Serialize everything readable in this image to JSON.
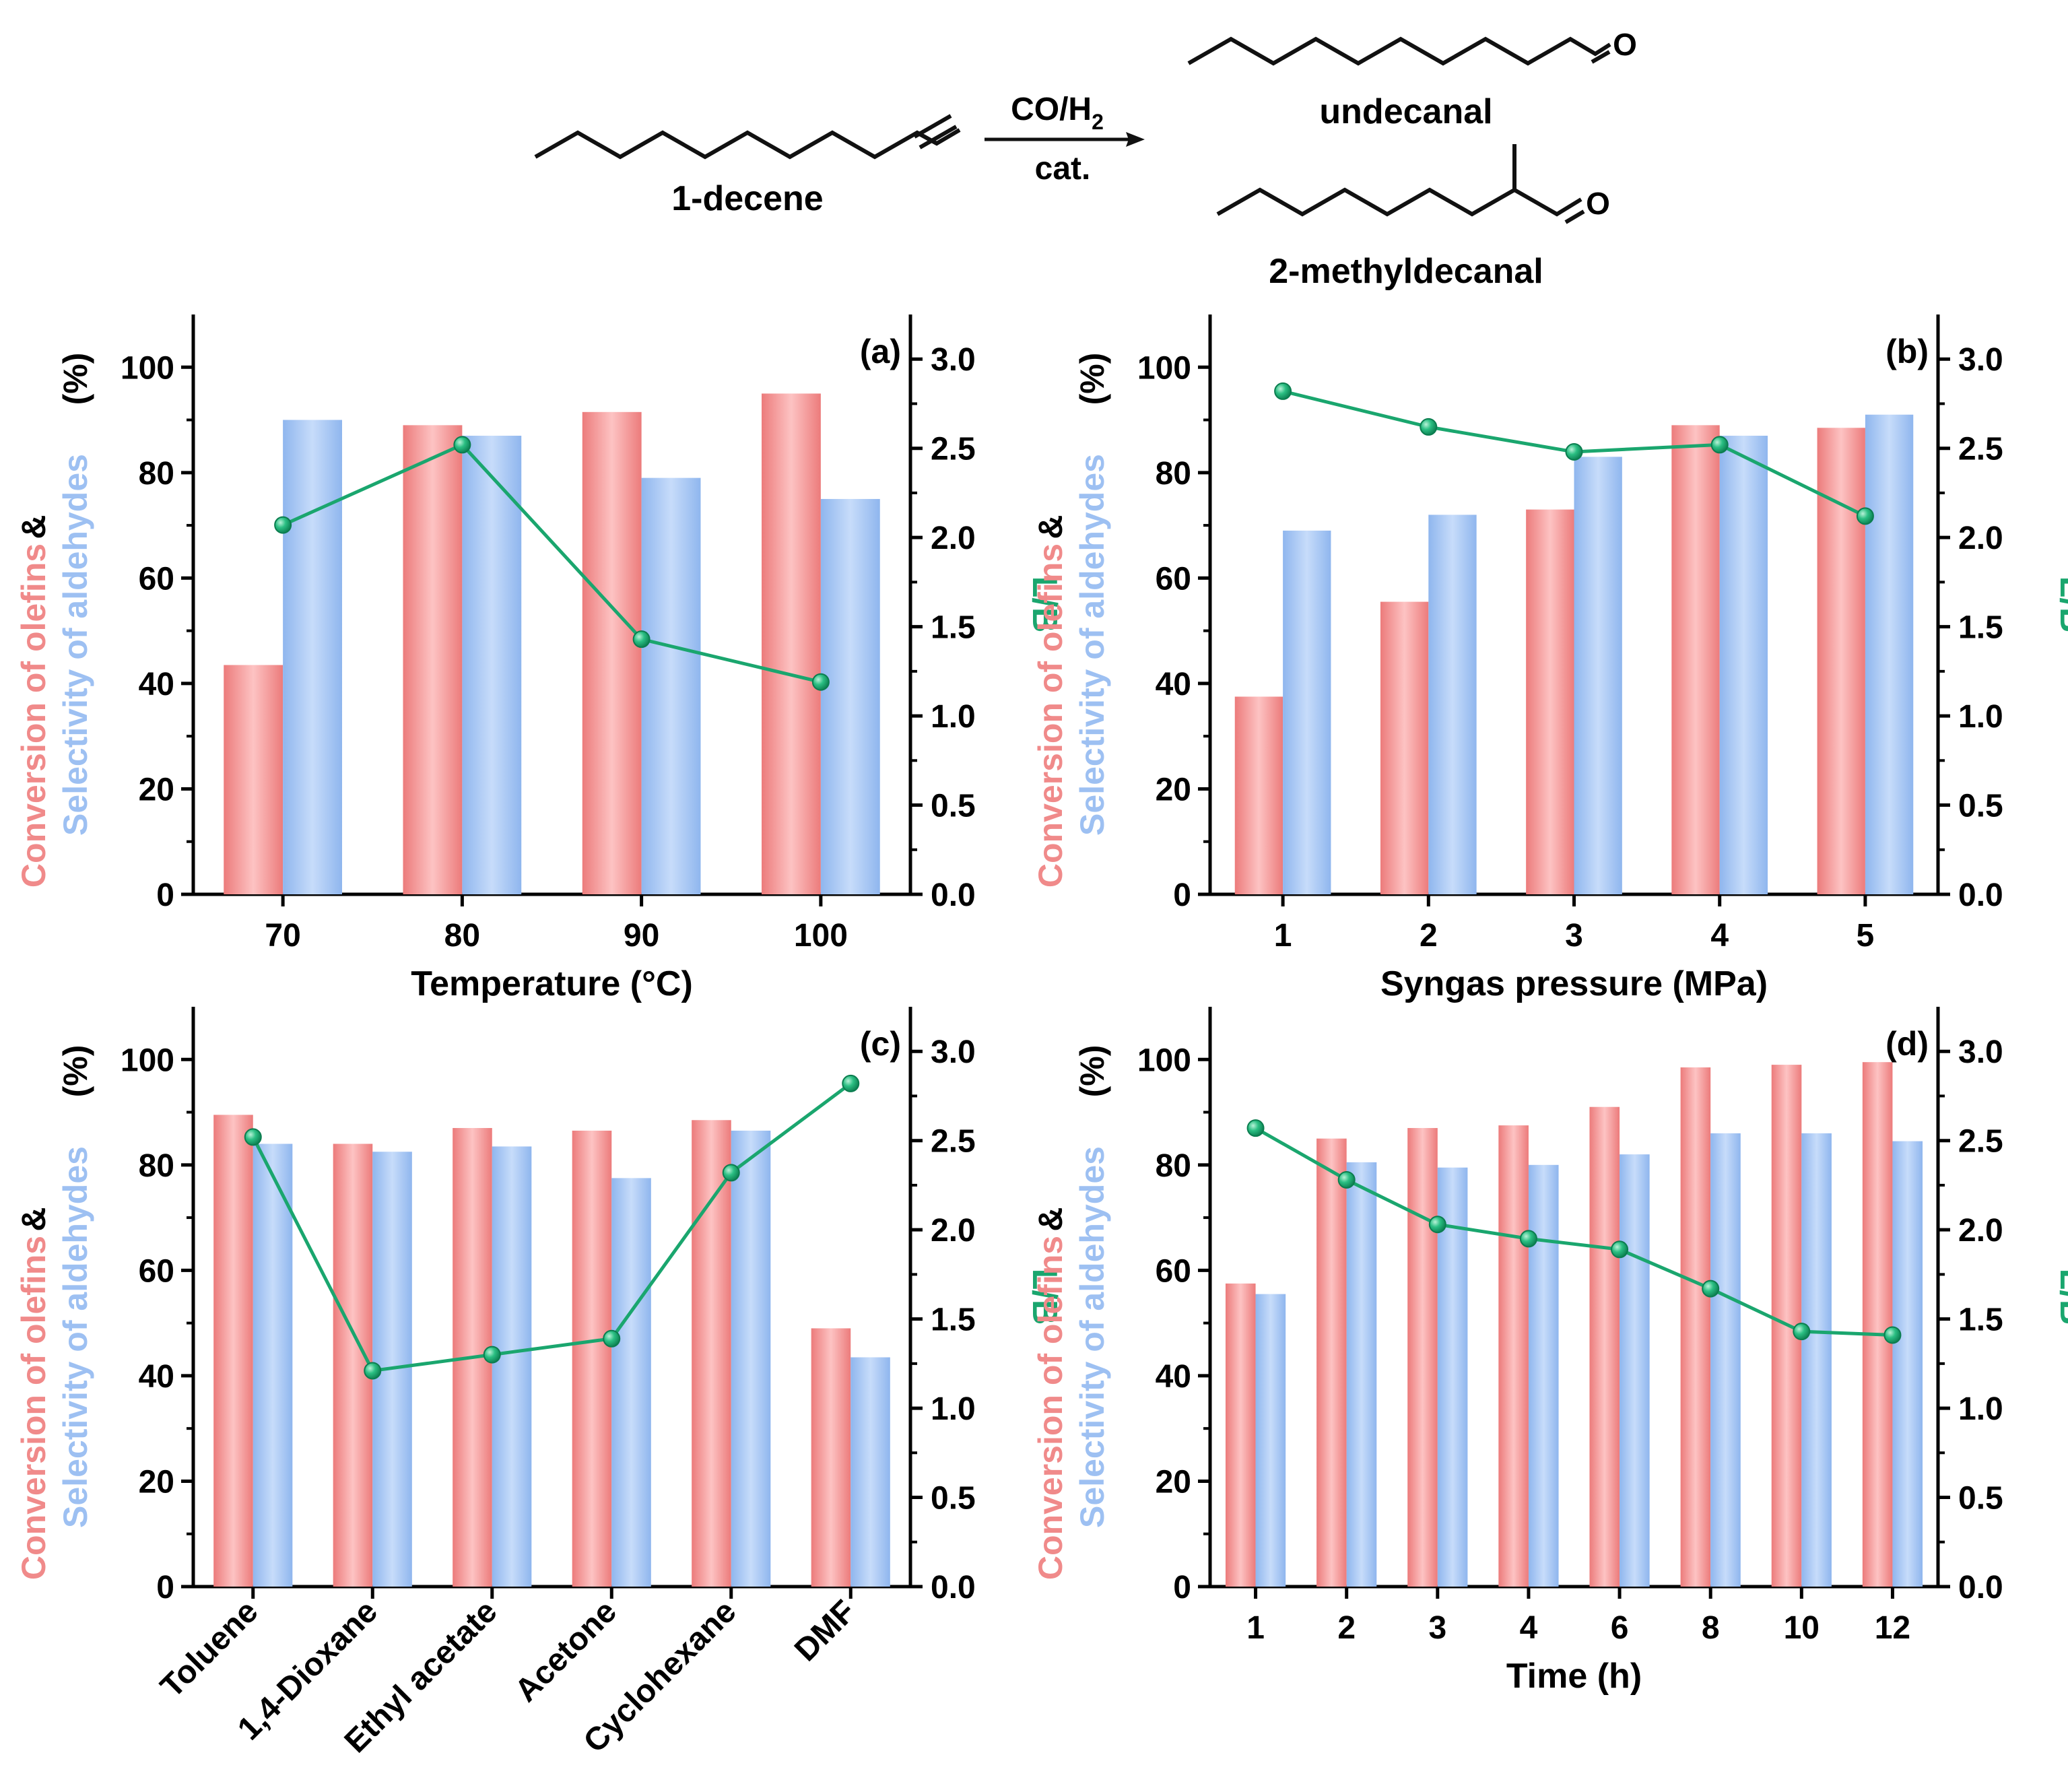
{
  "scheme": {
    "reactant": "1-decene",
    "reagent_top": "CO/H",
    "reagent_sub": "2",
    "reagent_bottom": "cat.",
    "product_linear": "undecanal",
    "product_branched": "2-methyldecanal",
    "oxygen": "O"
  },
  "colors": {
    "conversion": "#f08a8a",
    "selectivity": "#9dc0f2",
    "lb": "#1aa66e"
  },
  "chart_data": [
    {
      "panel": "(a)",
      "type": "bar",
      "categories": [
        "70",
        "80",
        "90",
        "100"
      ],
      "series": [
        {
          "name": "Conversion of olefins",
          "values": [
            43.5,
            89,
            91.5,
            95
          ]
        },
        {
          "name": "Selectivity of aldehydes",
          "values": [
            90,
            87,
            79,
            75
          ]
        }
      ],
      "line_series": {
        "name": "L/B",
        "values": [
          2.07,
          2.52,
          1.43,
          1.19
        ]
      },
      "xlabel": "Temperature (°C)",
      "ylabel_conv": "Conversion of olefins",
      "ylabel_sel": "Selectivity of aldehydes",
      "ylabel_amp": "&",
      "ylabel_unit": "(%)",
      "y2label": "L/B",
      "ylim": [
        0,
        110
      ],
      "y2lim": [
        0,
        3.25
      ],
      "yticks": [
        "0",
        "20",
        "40",
        "60",
        "80",
        "100"
      ],
      "y2ticks": [
        "0.0",
        "0.5",
        "1.0",
        "1.5",
        "2.0",
        "2.5",
        "3.0"
      ]
    },
    {
      "panel": "(b)",
      "type": "bar",
      "categories": [
        "1",
        "2",
        "3",
        "4",
        "5"
      ],
      "series": [
        {
          "name": "Conversion of olefins",
          "values": [
            37.5,
            55.5,
            73,
            89,
            88.5
          ]
        },
        {
          "name": "Selectivity of aldehydes",
          "values": [
            69,
            72,
            83,
            87,
            91
          ]
        }
      ],
      "line_series": {
        "name": "L/B",
        "values": [
          2.82,
          2.62,
          2.48,
          2.52,
          2.12
        ]
      },
      "xlabel": "Syngas pressure (MPa)",
      "ylabel_conv": "Conversion of olefins",
      "ylabel_sel": "Selectivity of aldehydes",
      "ylabel_amp": "&",
      "ylabel_unit": "(%)",
      "y2label": "L/B",
      "ylim": [
        0,
        110
      ],
      "y2lim": [
        0,
        3.25
      ],
      "yticks": [
        "0",
        "20",
        "40",
        "60",
        "80",
        "100"
      ],
      "y2ticks": [
        "0.0",
        "0.5",
        "1.0",
        "1.5",
        "2.0",
        "2.5",
        "3.0"
      ]
    },
    {
      "panel": "(c)",
      "type": "bar",
      "categories": [
        "Toluene",
        "1,4-Dioxane",
        "Ethyl acetate",
        "Acetone",
        "Cyclohexane",
        "DMF"
      ],
      "series": [
        {
          "name": "Conversion of olefins",
          "values": [
            89.5,
            84,
            87,
            86.5,
            88.5,
            49
          ]
        },
        {
          "name": "Selectivity of aldehydes",
          "values": [
            84,
            82.5,
            83.5,
            77.5,
            86.5,
            43.5
          ]
        }
      ],
      "line_series": {
        "name": "L/B",
        "values": [
          2.52,
          1.21,
          1.3,
          1.39,
          2.32,
          2.82
        ]
      },
      "xlabel": "",
      "ylabel_conv": "Conversion of olefins",
      "ylabel_sel": "Selectivity of aldehydes",
      "ylabel_amp": "&",
      "ylabel_unit": "(%)",
      "y2label": "L/B",
      "ylim": [
        0,
        110
      ],
      "y2lim": [
        0,
        3.25
      ],
      "yticks": [
        "0",
        "20",
        "40",
        "60",
        "80",
        "100"
      ],
      "y2ticks": [
        "0.0",
        "0.5",
        "1.0",
        "1.5",
        "2.0",
        "2.5",
        "3.0"
      ]
    },
    {
      "panel": "(d)",
      "type": "bar",
      "categories": [
        "1",
        "2",
        "3",
        "4",
        "6",
        "8",
        "10",
        "12"
      ],
      "series": [
        {
          "name": "Conversion of olefins",
          "values": [
            57.5,
            85,
            87,
            87.5,
            91,
            98.5,
            99,
            99.5
          ]
        },
        {
          "name": "Selectivity of aldehydes",
          "values": [
            55.5,
            80.5,
            79.5,
            80,
            82,
            86,
            86,
            84.5
          ]
        }
      ],
      "line_series": {
        "name": "L/B",
        "values": [
          2.57,
          2.28,
          2.03,
          1.95,
          1.89,
          1.67,
          1.43,
          1.41
        ]
      },
      "xlabel": "Time (h)",
      "ylabel_conv": "Conversion of olefins",
      "ylabel_sel": "Selectivity of aldehydes",
      "ylabel_amp": "&",
      "ylabel_unit": "(%)",
      "y2label": "L/B",
      "ylim": [
        0,
        110
      ],
      "y2lim": [
        0,
        3.25
      ],
      "yticks": [
        "0",
        "20",
        "40",
        "60",
        "80",
        "100"
      ],
      "y2ticks": [
        "0.0",
        "0.5",
        "1.0",
        "1.5",
        "2.0",
        "2.5",
        "3.0"
      ]
    }
  ]
}
